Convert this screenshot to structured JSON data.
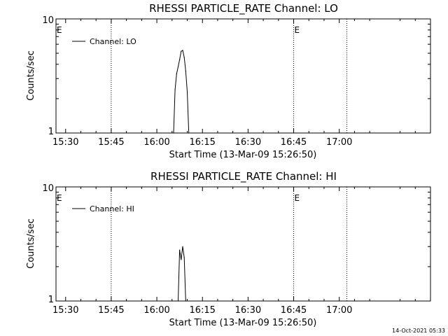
{
  "footer_timestamp": "14-Oct-2021 05:33",
  "chart_data": [
    {
      "type": "line",
      "title": "RHESSI PARTICLE_RATE Channel: LO",
      "xlabel": "Start Time (13-Mar-09 15:26:50)",
      "ylabel": "Counts/sec",
      "y_scale": "log",
      "ylim": [
        1,
        10
      ],
      "y_ticks": [
        "1",
        "10"
      ],
      "x_ticks": [
        "15:30",
        "15:45",
        "16:00",
        "16:15",
        "16:30",
        "16:45",
        "17:00"
      ],
      "xlim": [
        "15:26:50",
        "17:30:00"
      ],
      "legend": {
        "placement": "top-left",
        "entries": [
          "Channel: LO"
        ]
      },
      "event_markers": [
        {
          "time": "15:26:50",
          "label": "E",
          "line": false
        },
        {
          "time": "15:45:00",
          "label": "",
          "line": true
        },
        {
          "time": "16:45:00",
          "label": "E",
          "line": true
        },
        {
          "time": "17:02:30",
          "label": "",
          "line": true
        }
      ],
      "series": [
        {
          "name": "Channel: LO",
          "x": [
            "16:05:30",
            "16:06:00",
            "16:06:30",
            "16:07:00",
            "16:07:30",
            "16:08:00",
            "16:08:30",
            "16:09:00",
            "16:09:30",
            "16:10:00",
            "16:10:30"
          ],
          "y": [
            1.0,
            2.4,
            3.3,
            3.8,
            4.4,
            5.2,
            5.3,
            4.6,
            3.5,
            2.3,
            1.0
          ]
        }
      ]
    },
    {
      "type": "line",
      "title": "RHESSI PARTICLE_RATE Channel: HI",
      "xlabel": "Start Time (13-Mar-09 15:26:50)",
      "ylabel": "Counts/sec",
      "y_scale": "log",
      "ylim": [
        1,
        10
      ],
      "y_ticks": [
        "1",
        "10"
      ],
      "x_ticks": [
        "15:30",
        "15:45",
        "16:00",
        "16:15",
        "16:30",
        "16:45",
        "17:00"
      ],
      "xlim": [
        "15:26:50",
        "17:30:00"
      ],
      "legend": {
        "placement": "top-left",
        "entries": [
          "Channel: HI"
        ]
      },
      "event_markers": [
        {
          "time": "15:26:50",
          "label": "E",
          "line": false
        },
        {
          "time": "15:45:00",
          "label": "",
          "line": true
        },
        {
          "time": "16:45:00",
          "label": "E",
          "line": true
        },
        {
          "time": "17:02:30",
          "label": "",
          "line": true
        }
      ],
      "series": [
        {
          "name": "Channel: HI",
          "x": [
            "16:07:00",
            "16:07:30",
            "16:08:00",
            "16:08:30",
            "16:09:00",
            "16:09:30"
          ],
          "y": [
            1.0,
            2.8,
            2.3,
            3.0,
            2.4,
            1.0
          ]
        }
      ]
    }
  ]
}
